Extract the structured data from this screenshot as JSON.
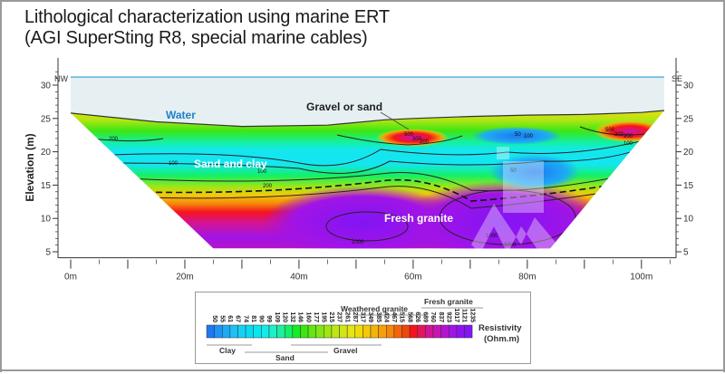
{
  "title": {
    "line1": "Lithological characterization using marine ERT",
    "line2": "(AGI SuperSting R8, special marine cables)"
  },
  "chart_data": {
    "type": "heatmap",
    "subtype": "resistivity-section",
    "title": "Lithological characterization using marine ERT (AGI SuperSting R8, special marine cables)",
    "xlabel": "",
    "ylabel": "Elevation (m)",
    "x_ticks": [
      0,
      20,
      40,
      60,
      80,
      100
    ],
    "x_tick_labels": [
      "0m",
      "20m",
      "40m",
      "60m",
      "80m",
      "100m"
    ],
    "x_minor_step": 5,
    "xlim": [
      -1,
      105
    ],
    "y_ticks": [
      5,
      10,
      15,
      20,
      25,
      30
    ],
    "y_tick_labels": [
      "5",
      "10",
      "15",
      "20",
      "25",
      "30"
    ],
    "ylim": [
      4.5,
      33
    ],
    "left_label": "NW",
    "right_label": "SE",
    "water_surface_elevation": 31.2,
    "seabed_profile": {
      "x": [
        0,
        15,
        30,
        45,
        55,
        60,
        70,
        80,
        90,
        100,
        104
      ],
      "y": [
        25.8,
        24.5,
        23.8,
        24.0,
        24.8,
        25.0,
        25.3,
        25.5,
        25.6,
        25.9,
        26.2
      ]
    },
    "section_bottom_elevation": 5.5,
    "section_bottom_x": [
      25,
      84
    ],
    "annotations": {
      "water": "Water",
      "gravel_or_sand": "Gravel or sand",
      "sand_and_clay": "Sand and clay",
      "fresh_granite": "Fresh granite"
    },
    "contour_labels": [
      "200",
      "100",
      "100",
      "100",
      "200",
      "500",
      "300",
      "200",
      "50",
      "100",
      "50",
      "1000",
      "1000",
      "1000",
      "500",
      "300",
      "200",
      "100"
    ],
    "legend": {
      "title_line1": "Resistivity",
      "title_line2": "(Ohm.m)",
      "values": [
        50,
        55,
        61,
        67,
        74,
        81,
        90,
        99,
        109,
        120,
        132,
        146,
        160,
        177,
        195,
        215,
        237,
        261,
        287,
        317,
        349,
        385,
        424,
        467,
        515,
        568,
        626,
        689,
        760,
        837,
        923,
        1017,
        1121,
        1235
      ],
      "colors": [
        "#1e78f0",
        "#1e94f5",
        "#1eaaf5",
        "#1ec0f5",
        "#14d2f5",
        "#0adcf0",
        "#0ae6f0",
        "#14ecec",
        "#1ef0c8",
        "#1ef0a0",
        "#14f064",
        "#14ec28",
        "#3ce614",
        "#64e614",
        "#82e614",
        "#a0e614",
        "#bee614",
        "#d2e614",
        "#e6e614",
        "#f0dc0a",
        "#f5c80a",
        "#f5b40a",
        "#f5a00a",
        "#f5870a",
        "#f5640a",
        "#f0460a",
        "#f5141e",
        "#e6145a",
        "#d21496",
        "#c814b4",
        "#b414d2",
        "#a014e6",
        "#8c14f0",
        "#8214f5"
      ],
      "lithology": {
        "clay": "Clay",
        "sand": "Sand",
        "gravel": "Gravel",
        "weathered_granite": "Weathered granite",
        "fresh_granite": "Fresh granite"
      }
    }
  },
  "colors": {
    "water_fill": "#e6f0f2",
    "water_line": "#5ab4dc",
    "water_label": "#1e82c8",
    "frame": "#9a9a9a"
  }
}
